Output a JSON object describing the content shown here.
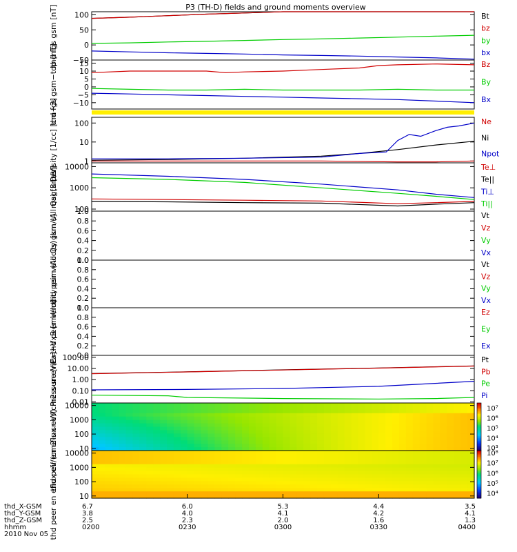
{
  "title": "P3 (TH-D) fields and ground moments overview",
  "colors": {
    "black": "#000000",
    "red": "#d00000",
    "green": "#00cc00",
    "blue": "#0000c8",
    "yellow": "#ffee00"
  },
  "chart_data": [
    {
      "type": "line",
      "ylabel": "thd fgs gsm [nT]",
      "ylim": [
        -50,
        110
      ],
      "yticks": [
        "100",
        "50",
        "0",
        "−50"
      ],
      "ytick_values": [
        100,
        50,
        0,
        -50
      ],
      "xlim": [
        0,
        1
      ],
      "series": [
        {
          "name": "Bt",
          "color": "#000000",
          "x": [
            0,
            0.1,
            0.2,
            0.3,
            0.4,
            0.5,
            0.6,
            0.7,
            0.8,
            0.9,
            1.0
          ],
          "values": [
            88,
            92,
            97,
            102,
            106,
            110,
            110,
            110,
            110,
            110,
            110
          ]
        },
        {
          "name": "bz",
          "color": "#d00000",
          "x": [
            0,
            0.1,
            0.2,
            0.3,
            0.4,
            0.5,
            0.6,
            0.7,
            0.8,
            0.9,
            1.0
          ],
          "values": [
            88,
            92,
            97,
            102,
            106,
            110,
            110,
            110,
            110,
            110,
            110
          ]
        },
        {
          "name": "by",
          "color": "#00cc00",
          "x": [
            0,
            0.1,
            0.2,
            0.3,
            0.4,
            0.5,
            0.6,
            0.7,
            0.8,
            0.9,
            1.0
          ],
          "values": [
            5,
            7,
            10,
            12,
            15,
            18,
            20,
            23,
            26,
            29,
            32
          ]
        },
        {
          "name": "bx",
          "color": "#0000c8",
          "x": [
            0,
            0.1,
            0.2,
            0.3,
            0.4,
            0.5,
            0.6,
            0.7,
            0.8,
            0.9,
            1.0
          ],
          "values": [
            -20,
            -23,
            -26,
            -28,
            -30,
            -33,
            -35,
            -37,
            -40,
            -43,
            -47
          ]
        }
      ]
    },
    {
      "type": "line",
      "ylabel": "thd fgs gsm−tdp [nT]",
      "ylim": [
        -14,
        17
      ],
      "yticks": [
        "15",
        "10",
        "5",
        "0",
        "−5",
        "−10"
      ],
      "ytick_values": [
        15,
        10,
        5,
        0,
        -5,
        -10
      ],
      "xlim": [
        0,
        1
      ],
      "series": [
        {
          "name": "Bz",
          "color": "#d00000",
          "x": [
            0,
            0.1,
            0.2,
            0.3,
            0.35,
            0.4,
            0.5,
            0.6,
            0.7,
            0.75,
            0.8,
            0.9,
            1.0
          ],
          "values": [
            9,
            10,
            10,
            10,
            9,
            9.5,
            10,
            11,
            12,
            13.5,
            14,
            14.5,
            14
          ]
        },
        {
          "name": "By",
          "color": "#00cc00",
          "x": [
            0,
            0.1,
            0.2,
            0.3,
            0.4,
            0.5,
            0.6,
            0.7,
            0.8,
            0.9,
            1.0
          ],
          "values": [
            -1,
            -1.5,
            -2,
            -2,
            -1.5,
            -2,
            -2,
            -2,
            -1.5,
            -2,
            -2
          ]
        },
        {
          "name": "Bx",
          "color": "#0000c8",
          "x": [
            0,
            0.1,
            0.2,
            0.3,
            0.4,
            0.5,
            0.6,
            0.7,
            0.8,
            0.9,
            1.0
          ],
          "values": [
            -4,
            -4.5,
            -5,
            -5.5,
            -6,
            -6.5,
            -7,
            -7.5,
            -8,
            -9,
            -10
          ]
        }
      ]
    },
    {
      "type": "line",
      "ylabel": "Density [1/cc] [cm−3]",
      "scale": "log",
      "ylim": [
        0.8,
        200
      ],
      "yticks": [
        "100",
        "10",
        "1"
      ],
      "ytick_values": [
        100,
        10,
        1
      ],
      "xlim": [
        0,
        1
      ],
      "series": [
        {
          "name": "Ne",
          "color": "#d00000",
          "x": [
            0,
            0.2,
            0.4,
            0.6,
            0.8,
            0.9,
            1.0
          ],
          "values": [
            1.0,
            1.0,
            1.0,
            1.0,
            0.9,
            0.9,
            1.0
          ]
        },
        {
          "name": "Ni",
          "color": "#000000",
          "x": [
            0,
            0.2,
            0.4,
            0.6,
            0.7,
            0.8,
            0.9,
            1.0
          ],
          "values": [
            1.1,
            1.2,
            1.4,
            1.8,
            2.5,
            4,
            7,
            11
          ]
        },
        {
          "name": "Npot",
          "color": "#0000c8",
          "x": [
            0,
            0.2,
            0.4,
            0.6,
            0.7,
            0.77,
            0.8,
            0.83,
            0.86,
            0.9,
            0.93,
            0.96,
            1.0
          ],
          "values": [
            1.3,
            1.3,
            1.4,
            1.6,
            2.5,
            3,
            12,
            25,
            20,
            40,
            60,
            70,
            100
          ]
        }
      ]
    },
    {
      "type": "line",
      "ylabel": "magt3 [eV]",
      "scale": "log",
      "ylim": [
        80,
        15000
      ],
      "yticks": [
        "10000",
        "1000",
        "100"
      ],
      "ytick_values": [
        10000,
        1000,
        100
      ],
      "xlim": [
        0,
        1
      ],
      "series": [
        {
          "name": "Te⊥",
          "color": "#d00000",
          "x": [
            0,
            0.2,
            0.4,
            0.6,
            0.8,
            0.9,
            1.0
          ],
          "values": [
            300,
            280,
            260,
            240,
            180,
            200,
            230
          ]
        },
        {
          "name": "Te||",
          "color": "#000000",
          "x": [
            0,
            0.2,
            0.4,
            0.6,
            0.8,
            0.9,
            1.0
          ],
          "values": [
            230,
            220,
            200,
            190,
            140,
            170,
            200
          ]
        },
        {
          "name": "Ti⊥",
          "color": "#0000c8",
          "x": [
            0,
            0.2,
            0.4,
            0.6,
            0.8,
            0.9,
            1.0
          ],
          "values": [
            4500,
            3500,
            2500,
            1500,
            800,
            500,
            350
          ]
        },
        {
          "name": "Ti||",
          "color": "#00cc00",
          "x": [
            0,
            0.2,
            0.4,
            0.6,
            0.8,
            0.9,
            1.0
          ],
          "values": [
            3000,
            2500,
            1800,
            1000,
            550,
            400,
            280
          ]
        }
      ]
    },
    {
      "type": "line",
      "ylabel": "thd peir velocity gsm (All Qs) [km/s]",
      "ylim": [
        0,
        1
      ],
      "yticks": [
        "1.0",
        "0.8",
        "0.6",
        "0.4",
        "0.2",
        "0.0"
      ],
      "ytick_values": [
        1.0,
        0.8,
        0.6,
        0.4,
        0.2,
        0.0
      ],
      "legend": [
        {
          "name": "Vt",
          "color": "#000000"
        },
        {
          "name": "Vz",
          "color": "#d00000"
        },
        {
          "name": "Vy",
          "color": "#00cc00"
        },
        {
          "name": "Vx",
          "color": "#0000c8"
        }
      ],
      "series": []
    },
    {
      "type": "line",
      "ylabel": "thd peer velocity gsm (All Qs) [km/s]",
      "ylim": [
        0,
        1
      ],
      "yticks": [
        "1.0",
        "0.8",
        "0.6",
        "0.4",
        "0.2",
        "0.0"
      ],
      "ytick_values": [
        1.0,
        0.8,
        0.6,
        0.4,
        0.2,
        0.0
      ],
      "legend": [
        {
          "name": "Vt",
          "color": "#000000"
        },
        {
          "name": "Vz",
          "color": "#d00000"
        },
        {
          "name": "Vy",
          "color": "#00cc00"
        },
        {
          "name": "Vx",
          "color": "#0000c8"
        }
      ],
      "series": []
    },
    {
      "type": "line",
      "ylabel": "E=−VxB [mV/m]",
      "ylim": [
        0,
        1
      ],
      "yticks": [
        "1.0",
        "0.8",
        "0.6",
        "0.4",
        "0.2",
        "0.0"
      ],
      "ytick_values": [
        1.0,
        0.8,
        0.6,
        0.4,
        0.2,
        0.0
      ],
      "legend": [
        {
          "name": "Ez",
          "color": "#d00000"
        },
        {
          "name": "Ey",
          "color": "#00cc00"
        },
        {
          "name": "Ex",
          "color": "#0000c8"
        }
      ],
      "series": []
    },
    {
      "type": "line",
      "ylabel": "Pressure [nPa]",
      "scale": "log",
      "ylim": [
        0.008,
        150
      ],
      "yticks": [
        "100.00",
        "10.00",
        "1.00",
        "0.10",
        "0.01"
      ],
      "ytick_values": [
        100,
        10,
        1,
        0.1,
        0.01
      ],
      "xlim": [
        0,
        1
      ],
      "series": [
        {
          "name": "Pt",
          "color": "#000000",
          "x": [
            0,
            0.25,
            0.5,
            0.75,
            1.0
          ],
          "values": [
            3.5,
            5,
            7.5,
            11,
            17
          ]
        },
        {
          "name": "Pb",
          "color": "#d00000",
          "x": [
            0,
            0.25,
            0.5,
            0.75,
            1.0
          ],
          "values": [
            3.4,
            4.9,
            7.3,
            10.8,
            16.5
          ]
        },
        {
          "name": "Pe",
          "color": "#00cc00",
          "x": [
            0,
            0.2,
            0.25,
            0.5,
            0.75,
            0.9,
            1.0
          ],
          "values": [
            0.04,
            0.035,
            0.025,
            0.02,
            0.018,
            0.02,
            0.025
          ]
        },
        {
          "name": "Pi",
          "color": "#0000c8",
          "x": [
            0,
            0.25,
            0.5,
            0.75,
            1.0
          ],
          "values": [
            0.12,
            0.13,
            0.16,
            0.25,
            0.7
          ]
        }
      ]
    },
    {
      "type": "heatmap",
      "ylabel": "thd peir en eflux eV/(cm2-s-sr-eV)",
      "scale": "log",
      "ylim": [
        7,
        15000
      ],
      "yticks": [
        "10000",
        "1000",
        "100",
        "10"
      ],
      "ytick_values": [
        10000,
        1000,
        100,
        10
      ],
      "colorbar_ticks": [
        "10⁷",
        "10⁶",
        "10⁵",
        "10⁴",
        "10³"
      ],
      "colorbar_values": [
        7,
        6,
        5,
        4,
        3
      ],
      "colorbar_range": [
        2.7,
        7.5
      ]
    },
    {
      "type": "heatmap",
      "ylabel": "thd peer en eflux eV/(cm2-s-sr-eV)",
      "scale": "log",
      "ylim": [
        7,
        15000
      ],
      "yticks": [
        "10000",
        "1000",
        "100",
        "10"
      ],
      "ytick_values": [
        10000,
        1000,
        100,
        10
      ],
      "colorbar_ticks": [
        "10⁸",
        "10⁷",
        "10⁶",
        "10⁵",
        "10⁴"
      ],
      "colorbar_values": [
        8,
        7,
        6,
        5,
        4
      ],
      "colorbar_range": [
        3.5,
        8.2
      ]
    }
  ],
  "xaxis": {
    "row_labels": [
      "thd_X-GSM",
      "thd_Y-GSM",
      "thd_Z-GSM",
      "hhmm",
      "2010 Nov 05"
    ],
    "columns": [
      {
        "x": "6.7",
        "y": "3.8",
        "z": "2.5",
        "hhmm": "0200"
      },
      {
        "x": "6.0",
        "y": "4.0",
        "z": "2.3",
        "hhmm": "0230"
      },
      {
        "x": "5.3",
        "y": "4.1",
        "z": "2.0",
        "hhmm": "0300"
      },
      {
        "x": "4.4",
        "y": "4.2",
        "z": "1.6",
        "hhmm": "0330"
      },
      {
        "x": "3.5",
        "y": "4.1",
        "z": "1.3",
        "hhmm": "0400"
      }
    ]
  }
}
